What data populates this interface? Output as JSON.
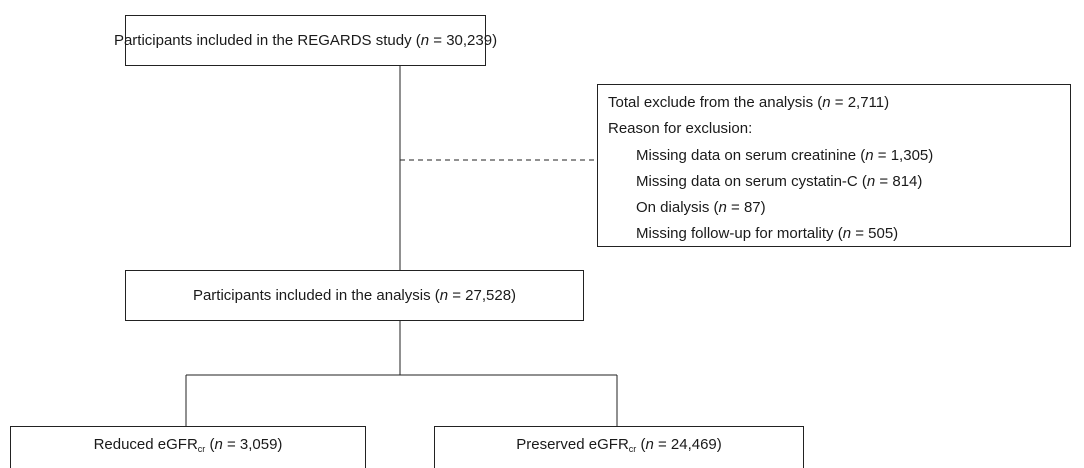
{
  "nodes": [
    {
      "parts": [
        "Participants included in the REGARDS study (",
        "n",
        " = 30,239)"
      ]
    },
    {
      "lines": [
        {
          "parts": [
            "Total exclude from the analysis (",
            "n",
            " = 2,711)"
          ]
        },
        {
          "parts": [
            "Reason for exclusion:"
          ]
        },
        {
          "parts": [
            "Missing data on serum creatinine (",
            "n",
            " = 1,305)"
          ]
        },
        {
          "parts": [
            "Missing data on serum cystatin-C (",
            "n",
            " = 814)"
          ]
        },
        {
          "parts": [
            "On dialysis (",
            "n",
            " = 87)"
          ]
        },
        {
          "parts": [
            "Missing follow-up for mortality (",
            "n",
            " = 505)"
          ]
        }
      ]
    },
    {
      "parts": [
        "Participants included in the analysis (",
        "n",
        " = 27,528)"
      ]
    },
    {
      "parts": [
        "Reduced eGFR",
        "cr",
        " (",
        "n",
        " = 3,059)"
      ]
    },
    {
      "parts": [
        "Preserved eGFR",
        "cr",
        " (",
        "n",
        " = 24,469)"
      ]
    }
  ]
}
